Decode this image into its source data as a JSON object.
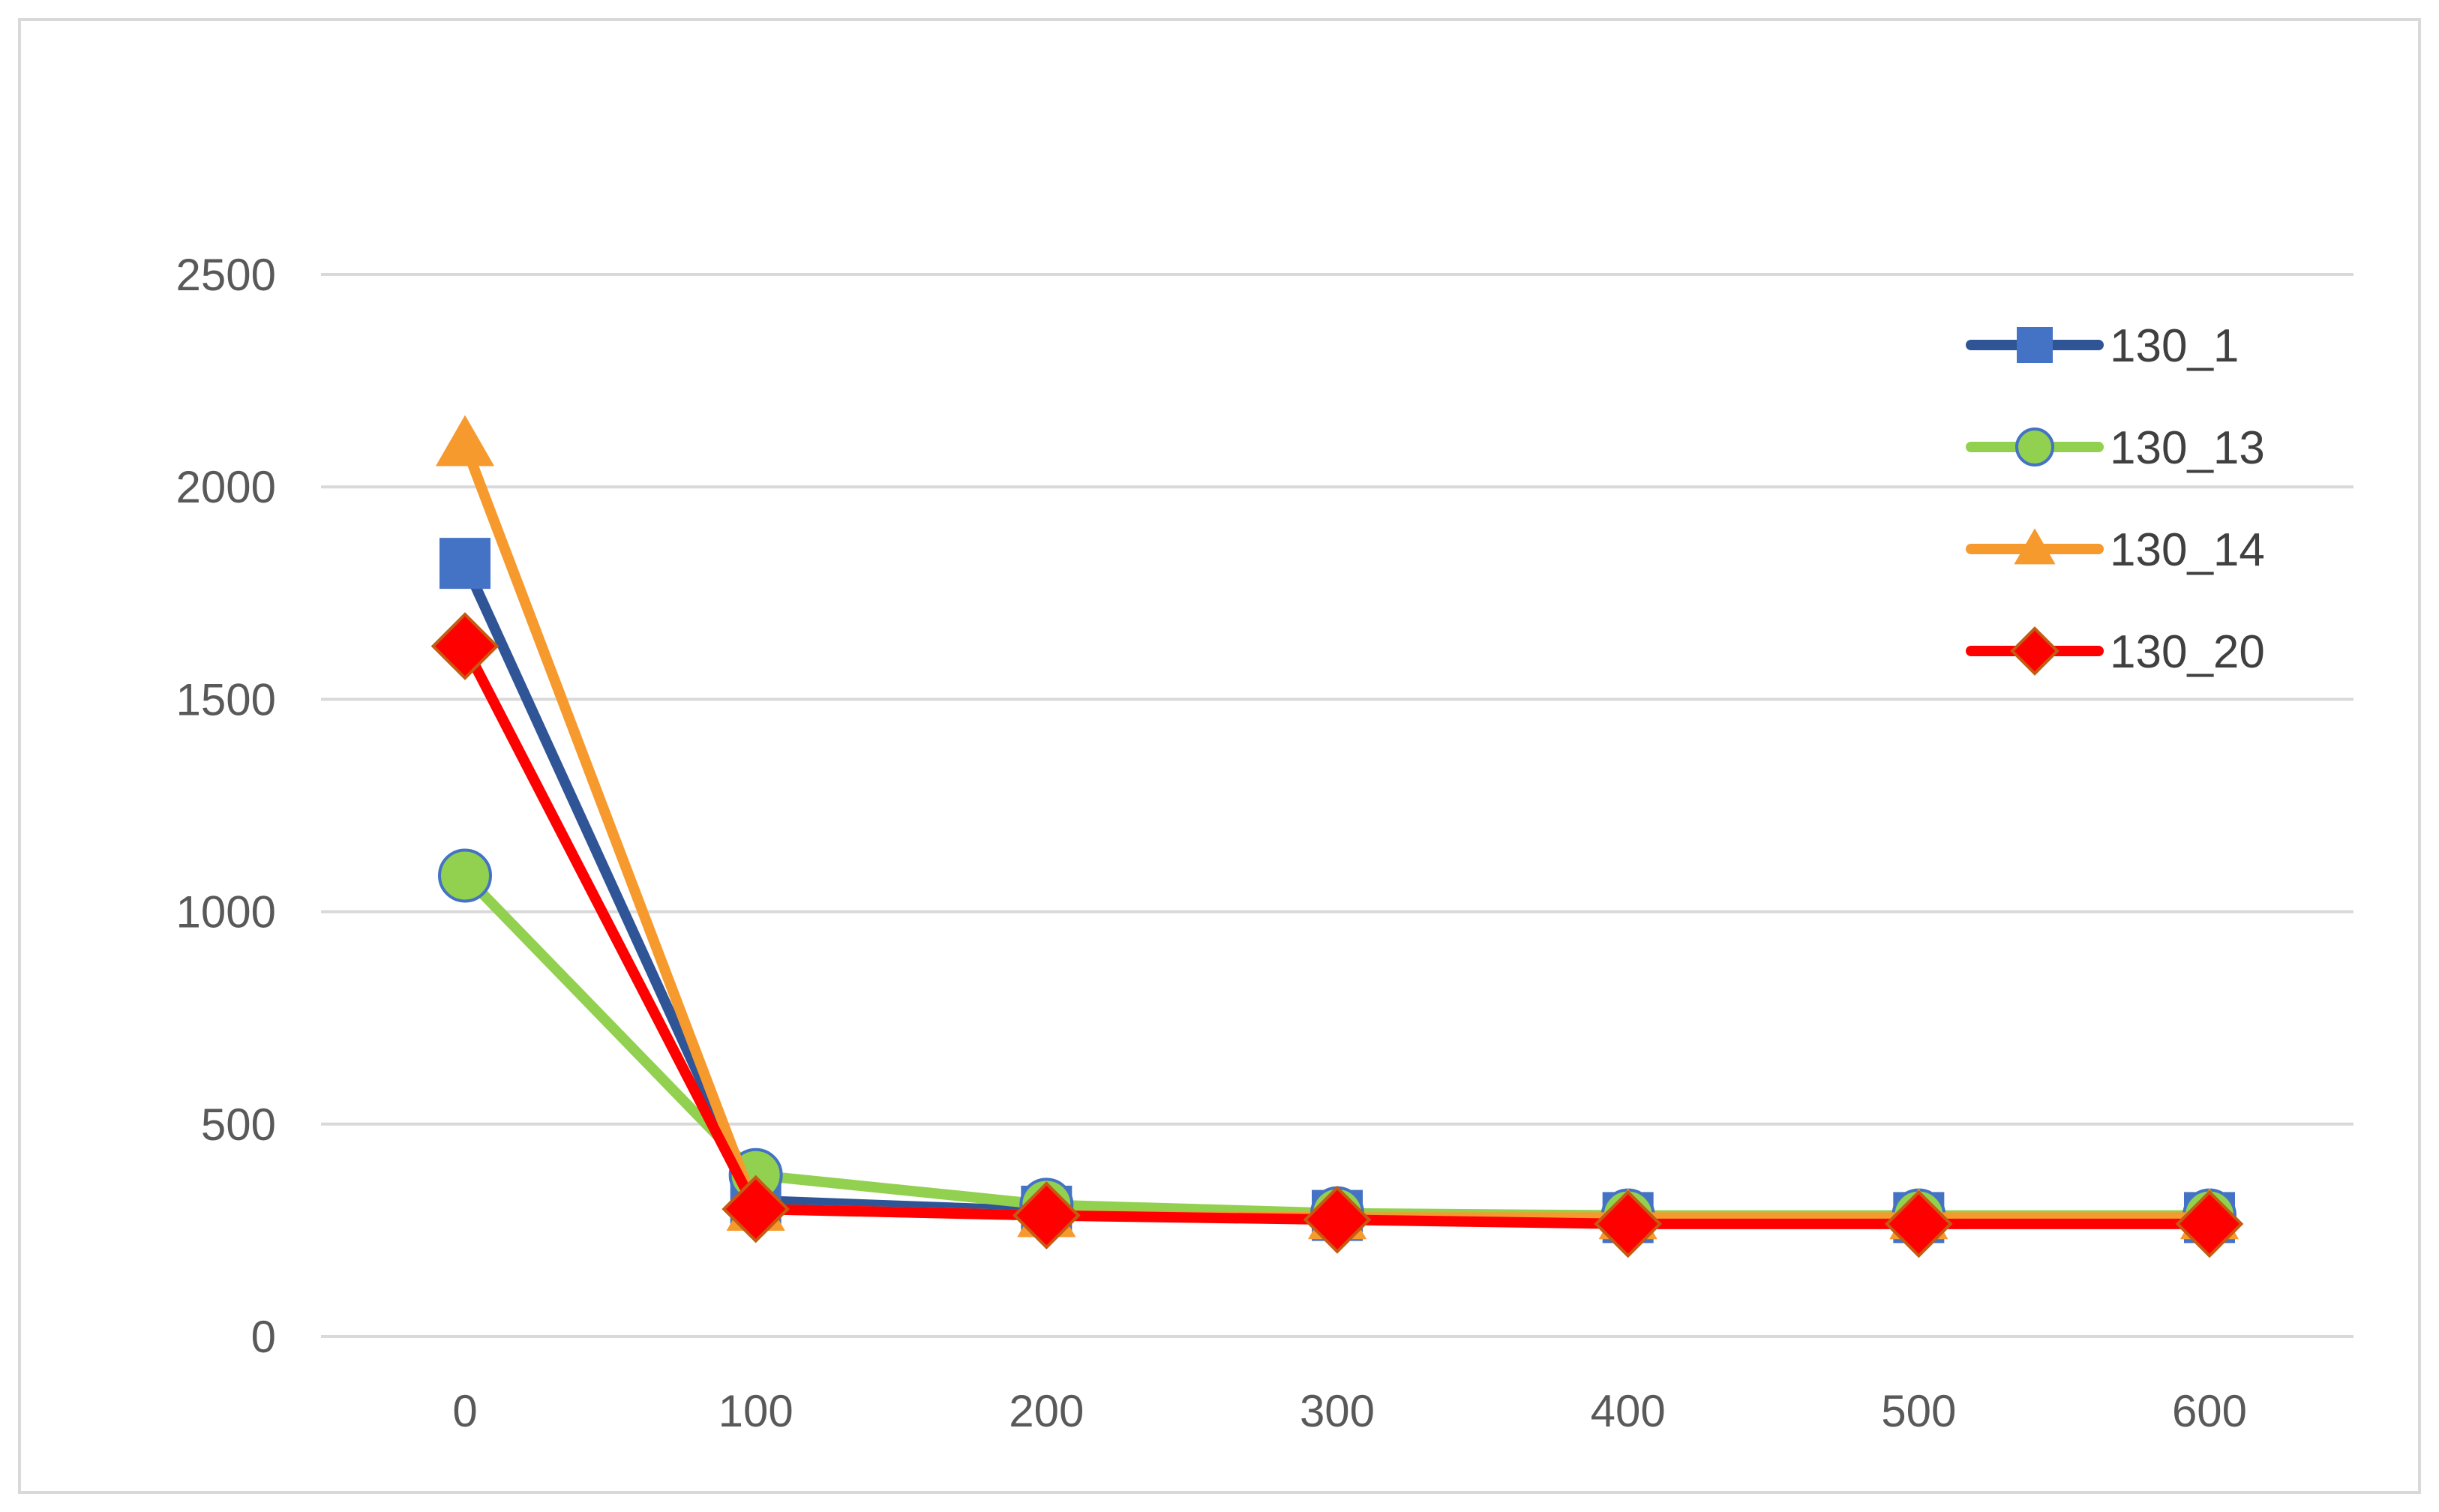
{
  "chart_data": {
    "type": "line",
    "title": "",
    "xlabel": "",
    "ylabel": "",
    "x": [
      0,
      100,
      200,
      300,
      400,
      500,
      600
    ],
    "xlim": [
      0,
      600
    ],
    "ylim": [
      0,
      2500
    ],
    "x_ticks": [
      "0",
      "100",
      "200",
      "300",
      "400",
      "500",
      "600"
    ],
    "y_ticks": [
      "0",
      "500",
      "1000",
      "1500",
      "2000",
      "2500"
    ],
    "grid": "horizontal",
    "legend_position": "top-right",
    "series": [
      {
        "name": "130_1",
        "line_color": "#2F5597",
        "marker_color": "#4472C4",
        "marker": "square",
        "values": [
          1820,
          320,
          295,
          285,
          280,
          280,
          280
        ]
      },
      {
        "name": "130_13",
        "line_color": "#92D050",
        "marker_color": "#92D050",
        "marker_edge": "#4472C4",
        "marker": "circle",
        "values": [
          1085,
          380,
          310,
          290,
          285,
          285,
          285
        ]
      },
      {
        "name": "130_14",
        "line_color": "#F79A2E",
        "marker_color": "#F79A2E",
        "marker": "triangle",
        "values": [
          2100,
          300,
          285,
          280,
          280,
          280,
          280
        ]
      },
      {
        "name": "130_20",
        "line_color": "#FF0000",
        "marker_color": "#FF0000",
        "marker_edge": "#C55A11",
        "marker": "diamond",
        "values": [
          1625,
          300,
          285,
          275,
          265,
          265,
          265
        ]
      }
    ]
  }
}
